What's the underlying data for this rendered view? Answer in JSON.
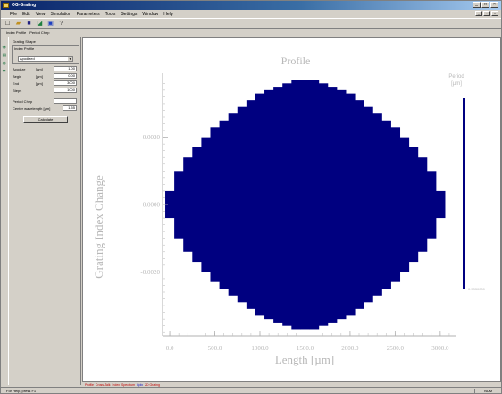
{
  "window": {
    "title": "OG-Grating",
    "controls": [
      "_",
      "□",
      "×"
    ]
  },
  "menu": [
    "File",
    "Edit",
    "View",
    "Simulation",
    "Parameters",
    "Tools",
    "Settings",
    "Window",
    "Help"
  ],
  "toolbar": {
    "buttons": [
      "new-icon",
      "open-icon",
      "save-icon",
      "graph-icon",
      "calc-icon",
      "help-icon"
    ]
  },
  "toolbar2": [
    "Index Profile",
    "Period Chirp"
  ],
  "panel": {
    "group_label": "Grating Shape",
    "profile_label": "Index Profile",
    "profile_select": "Apodized",
    "rows": [
      {
        "label": "Apodize",
        "unit": "[µm]",
        "value": "1.00"
      },
      {
        "label": "Begin",
        "unit": "[µm]",
        "value": "0.00"
      },
      {
        "label": "End",
        "unit": "[µm]",
        "value": "3000"
      },
      {
        "label": "Steps",
        "unit": "",
        "value": "1000"
      }
    ],
    "period_chirp_label": "Period Chirp",
    "wavelength_label": "Center wavelength [µm]",
    "wavelength_value": "1.55",
    "calculate_button": "Calculate"
  },
  "tabs": [
    "Profile",
    "Cross-Talk",
    "Index",
    "Spectrum",
    "Cplx",
    "2D Grating"
  ],
  "status": {
    "left": "For Help, press F1",
    "right": "NUM"
  },
  "chart_data": {
    "type": "heatmap",
    "title": "Profile",
    "xlabel": "Length [µm]",
    "ylabel": "Grating Index Change",
    "xlim": [
      -80,
      3180
    ],
    "ylim": [
      -0.0039,
      0.0039
    ],
    "x_ticks": [
      0,
      500,
      1000,
      1500,
      2000,
      2500,
      3000
    ],
    "x_tick_labels": [
      "0.0",
      "500.0",
      "1000.0",
      "1500.0",
      "2000.0",
      "2500.0",
      "3000.0"
    ],
    "y_ticks": [
      0.002,
      0.0,
      -0.002
    ],
    "y_tick_labels": [
      "0.0020",
      "0.0000",
      "-0.0020"
    ],
    "steps": 31,
    "step_length": 100,
    "envelope": {
      "x": [
        0,
        100,
        200,
        300,
        400,
        500,
        600,
        700,
        800,
        900,
        1000,
        1100,
        1200,
        1300,
        1400,
        1500,
        1600,
        1700,
        1800,
        1900,
        2000,
        2100,
        2200,
        2300,
        2400,
        2500,
        2600,
        2700,
        2800,
        2900,
        3000
      ],
      "y": [
        0.0004,
        0.001,
        0.0014,
        0.0017,
        0.002,
        0.0023,
        0.0025,
        0.0027,
        0.0029,
        0.0031,
        0.0033,
        0.0034,
        0.0035,
        0.0036,
        0.0037,
        0.0037,
        0.0037,
        0.0036,
        0.0035,
        0.0034,
        0.0033,
        0.0031,
        0.0029,
        0.0027,
        0.0025,
        0.0023,
        0.002,
        0.0017,
        0.0014,
        0.001,
        0.0004
      ]
    },
    "fill_color": "#000080",
    "legend_title": "Period",
    "legend_unit": "[µm]",
    "legend_min_label": "0.5330000",
    "grid": false
  }
}
